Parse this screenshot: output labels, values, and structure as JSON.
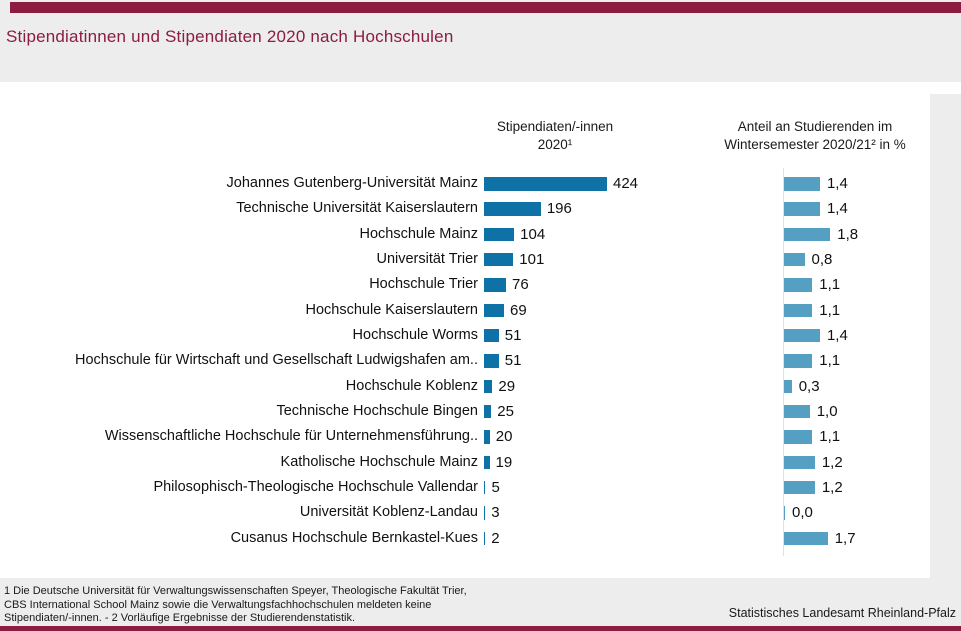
{
  "title": "Stipendiatinnen und Stipendiaten 2020 nach Hochschulen",
  "columns": {
    "count_header": "Stipendiaten/-innen\n2020¹",
    "percent_header": "Anteil an Studierenden im\nWintersemester 2020/21² in %"
  },
  "chart_data": {
    "type": "bar",
    "orientation": "horizontal",
    "categories": [
      "Johannes Gutenberg-Universität Mainz",
      "Technische Universität Kaiserslautern",
      "Hochschule Mainz",
      "Universität Trier",
      "Hochschule Trier",
      "Hochschule Kaiserslautern",
      "Hochschule Worms",
      "Hochschule für Wirtschaft und Gesellschaft Ludwigshafen am..",
      "Hochschule Koblenz",
      "Technische Hochschule Bingen",
      "Wissenschaftliche Hochschule für Unternehmensführung..",
      "Katholische Hochschule Mainz",
      "Philosophisch-Theologische Hochschule Vallendar",
      "Universität Koblenz-Landau",
      "Cusanus Hochschule Bernkastel-Kues"
    ],
    "series": [
      {
        "name": "Stipendiaten/-innen 2020¹",
        "values": [
          424,
          196,
          104,
          101,
          76,
          69,
          51,
          51,
          29,
          25,
          20,
          19,
          5,
          3,
          2
        ],
        "labels": [
          "424",
          "196",
          "104",
          "101",
          "76",
          "69",
          "51",
          "51",
          "29",
          "25",
          "20",
          "19",
          "5",
          "3",
          "2"
        ]
      },
      {
        "name": "Anteil an Studierenden im Wintersemester 2020/21² in %",
        "values": [
          1.4,
          1.4,
          1.8,
          0.8,
          1.1,
          1.1,
          1.4,
          1.1,
          0.3,
          1.0,
          1.1,
          1.2,
          1.2,
          0.0,
          1.7
        ],
        "labels": [
          "1,4",
          "1,4",
          "1,8",
          "0,8",
          "1,1",
          "1,1",
          "1,4",
          "1,1",
          "0,3",
          "1,0",
          "1,1",
          "1,2",
          "1,2",
          "0,0",
          "1,7"
        ]
      }
    ],
    "legend": "none",
    "grid": false
  },
  "footnote": "1 Die Deutsche Universität für Verwaltungswissenschaften Speyer, Theologische Fakultät Trier,\nCBS International School Mainz sowie die Verwaltungsfachhochschulen meldeten keine\nStipendiaten/-innen. - 2 Vorläufige Ergebnisse der Studierendenstatistik.",
  "source": "Statistisches Landesamt Rheinland-Pfalz",
  "colors": {
    "accent": "#8c1c40",
    "bar_left": "#0f72a6",
    "bar_right": "#55a0c2",
    "background": "#ededed",
    "panel": "#ffffff",
    "axis_line": "#f2d9e0"
  }
}
